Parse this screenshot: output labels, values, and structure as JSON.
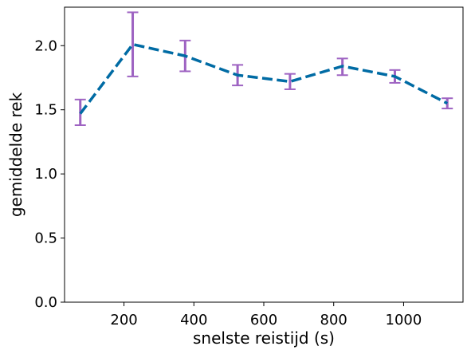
{
  "chart_data": {
    "type": "line",
    "title": "",
    "xlabel": "snelste reistijd (s)",
    "ylabel": "gemiddelde rek",
    "xlim": [
      30,
      1170
    ],
    "ylim": [
      0,
      2.3
    ],
    "xticks": [
      200,
      400,
      600,
      800,
      1000
    ],
    "xtick_labels": [
      "200",
      "400",
      "600",
      "800",
      "1000"
    ],
    "yticks": [
      0.0,
      0.5,
      1.0,
      1.5,
      2.0
    ],
    "ytick_labels": [
      "0.0",
      "0.5",
      "1.0",
      "1.5",
      "2.0"
    ],
    "grid": false,
    "legend": "none",
    "series": [
      {
        "x": [
          75,
          225,
          375,
          525,
          675,
          825,
          975,
          1125
        ],
        "y": [
          1.47,
          2.01,
          1.92,
          1.77,
          1.72,
          1.84,
          1.76,
          1.55
        ],
        "yerr_low": [
          1.38,
          1.76,
          1.8,
          1.69,
          1.66,
          1.77,
          1.71,
          1.51
        ],
        "yerr_high": [
          1.58,
          2.26,
          2.04,
          1.85,
          1.78,
          1.9,
          1.81,
          1.59
        ],
        "line_color": "#006ba4",
        "line_style": "dashed",
        "errorbar_color": "#9e63c2"
      }
    ]
  }
}
